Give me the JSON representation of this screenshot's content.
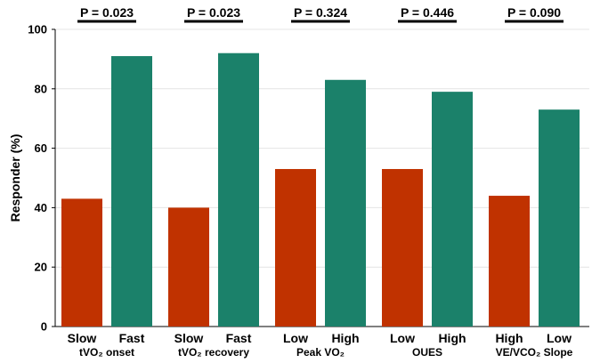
{
  "chart_data": {
    "type": "bar",
    "ylabel": "Responder (%)",
    "ylim": [
      0,
      100
    ],
    "yticks": [
      0,
      20,
      40,
      60,
      80,
      100
    ],
    "grid": "horizontal",
    "colors": {
      "low_group": "#c03200",
      "high_group": "#1b816a"
    },
    "groups": [
      {
        "label": "tVO₂ onset",
        "p_value": "P = 0.023",
        "bars": [
          {
            "category": "Slow",
            "value": 43,
            "color": "low_group"
          },
          {
            "category": "Fast",
            "value": 91,
            "color": "high_group"
          }
        ]
      },
      {
        "label": "tVO₂ recovery",
        "p_value": "P = 0.023",
        "bars": [
          {
            "category": "Slow",
            "value": 40,
            "color": "low_group"
          },
          {
            "category": "Fast",
            "value": 92,
            "color": "high_group"
          }
        ]
      },
      {
        "label": "Peak VO₂",
        "p_value": "P = 0.324",
        "bars": [
          {
            "category": "Low",
            "value": 53,
            "color": "low_group"
          },
          {
            "category": "High",
            "value": 83,
            "color": "high_group"
          }
        ]
      },
      {
        "label": "OUES",
        "p_value": "P = 0.446",
        "bars": [
          {
            "category": "Low",
            "value": 53,
            "color": "low_group"
          },
          {
            "category": "High",
            "value": 79,
            "color": "high_group"
          }
        ]
      },
      {
        "label": "VE/VCO₂ Slope",
        "p_value": "P = 0.090",
        "bars": [
          {
            "category": "High",
            "value": 44,
            "color": "low_group"
          },
          {
            "category": "Low",
            "value": 73,
            "color": "high_group"
          }
        ]
      }
    ]
  }
}
